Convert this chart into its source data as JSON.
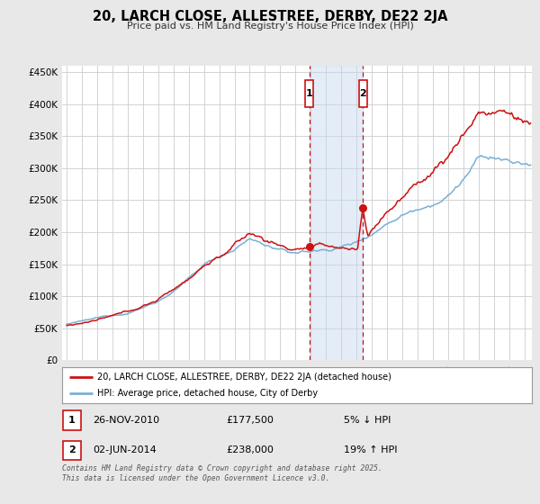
{
  "title": "20, LARCH CLOSE, ALLESTREE, DERBY, DE22 2JA",
  "subtitle": "Price paid vs. HM Land Registry's House Price Index (HPI)",
  "ylim": [
    0,
    460000
  ],
  "yticks": [
    0,
    50000,
    100000,
    150000,
    200000,
    250000,
    300000,
    350000,
    400000,
    450000
  ],
  "ytick_labels": [
    "£0",
    "£50K",
    "£100K",
    "£150K",
    "£200K",
    "£250K",
    "£300K",
    "£350K",
    "£400K",
    "£450K"
  ],
  "background_color": "#e8e8e8",
  "plot_bg_color": "#ffffff",
  "grid_color": "#cccccc",
  "hpi_color": "#7bafd4",
  "price_color": "#cc1111",
  "sale1_date": "26-NOV-2010",
  "sale1_price": 177500,
  "sale1_hpi_pct": "5% ↓ HPI",
  "sale2_date": "02-JUN-2014",
  "sale2_price": 238000,
  "sale2_hpi_pct": "19% ↑ HPI",
  "legend_label_price": "20, LARCH CLOSE, ALLESTREE, DERBY, DE22 2JA (detached house)",
  "legend_label_hpi": "HPI: Average price, detached house, City of Derby",
  "footer": "Contains HM Land Registry data © Crown copyright and database right 2025.\nThis data is licensed under the Open Government Licence v3.0.",
  "sale1_x": 2010.9,
  "sale2_x": 2014.42
}
